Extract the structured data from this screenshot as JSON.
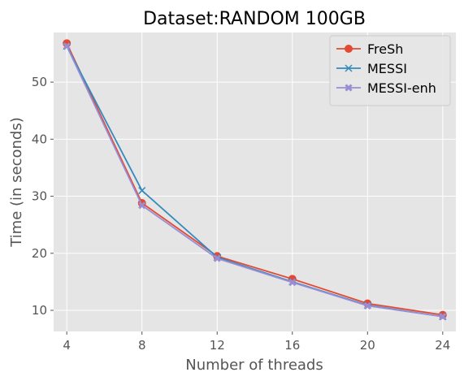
{
  "chart_data": {
    "type": "line",
    "title": "Dataset:RANDOM 100GB",
    "xlabel": "Number of threads",
    "ylabel": "Time (in seconds)",
    "x": [
      4,
      8,
      12,
      16,
      20,
      24
    ],
    "xlim": [
      3.3,
      24.7
    ],
    "ylim": [
      6.3,
      58.7
    ],
    "xticks": [
      4,
      8,
      12,
      16,
      20,
      24
    ],
    "yticks": [
      10,
      20,
      30,
      40,
      50
    ],
    "grid": true,
    "legend_position": "top-right",
    "background": "#e5e5e5",
    "series": [
      {
        "name": "FreSh",
        "color": "#e24a33",
        "marker": "circle",
        "values": [
          56.8,
          28.8,
          19.5,
          15.5,
          11.2,
          9.2
        ]
      },
      {
        "name": "MESSI",
        "color": "#348abd",
        "marker": "x",
        "values": [
          56.3,
          31.0,
          19.3,
          15.0,
          10.9,
          8.9
        ]
      },
      {
        "name": "MESSI-enh",
        "color": "#988ed5",
        "marker": "thick-x",
        "values": [
          56.3,
          28.4,
          19.1,
          14.9,
          10.8,
          8.9
        ]
      }
    ]
  }
}
